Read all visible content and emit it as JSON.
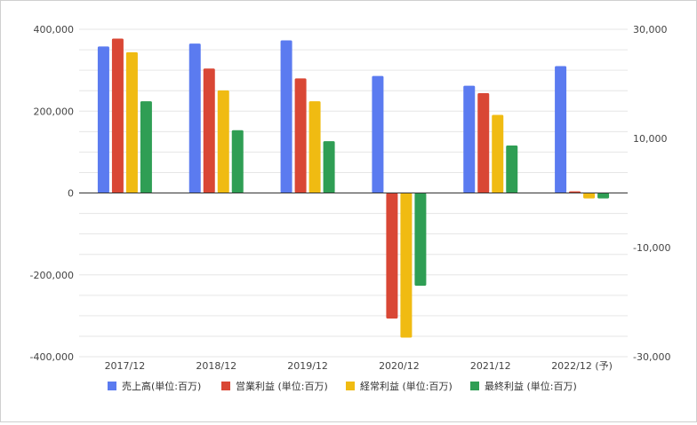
{
  "chart_data": {
    "type": "bar",
    "title": "",
    "categories": [
      "2017/12",
      "2018/12",
      "2019/12",
      "2020/12",
      "2021/12",
      "2022/12 (予)"
    ],
    "series": [
      {
        "name": "売上高(単位:百万)",
        "axis": "left",
        "color": "#5b7bf0",
        "values": [
          358000,
          365000,
          373000,
          286000,
          262000,
          310000
        ]
      },
      {
        "name": "営業利益 (単位:百万)",
        "axis": "right",
        "color": "#d94735",
        "values": [
          28300,
          22800,
          21000,
          -23000,
          18300,
          300
        ]
      },
      {
        "name": "経常利益 (単位:百万)",
        "axis": "right",
        "color": "#f0bb12",
        "values": [
          25800,
          18800,
          16800,
          -26500,
          14300,
          -1000
        ]
      },
      {
        "name": "最終利益 (単位:百万)",
        "axis": "right",
        "color": "#2f9e54",
        "values": [
          16800,
          11500,
          9500,
          -17000,
          8700,
          -1000
        ]
      }
    ],
    "y_left": {
      "ylim": [
        -400000,
        400000
      ],
      "ticks": [
        "400,000",
        "200,000",
        "0",
        "-200,000",
        "-400,000"
      ],
      "tick_values": [
        400000,
        200000,
        0,
        -200000,
        -400000
      ]
    },
    "y_right": {
      "ylim": [
        -30000,
        30000
      ],
      "ticks": [
        "30,000",
        "10,000",
        "-10,000",
        "-30,000"
      ],
      "tick_values": [
        30000,
        10000,
        -10000,
        -30000
      ]
    },
    "grid": true,
    "legend": "bottom"
  }
}
